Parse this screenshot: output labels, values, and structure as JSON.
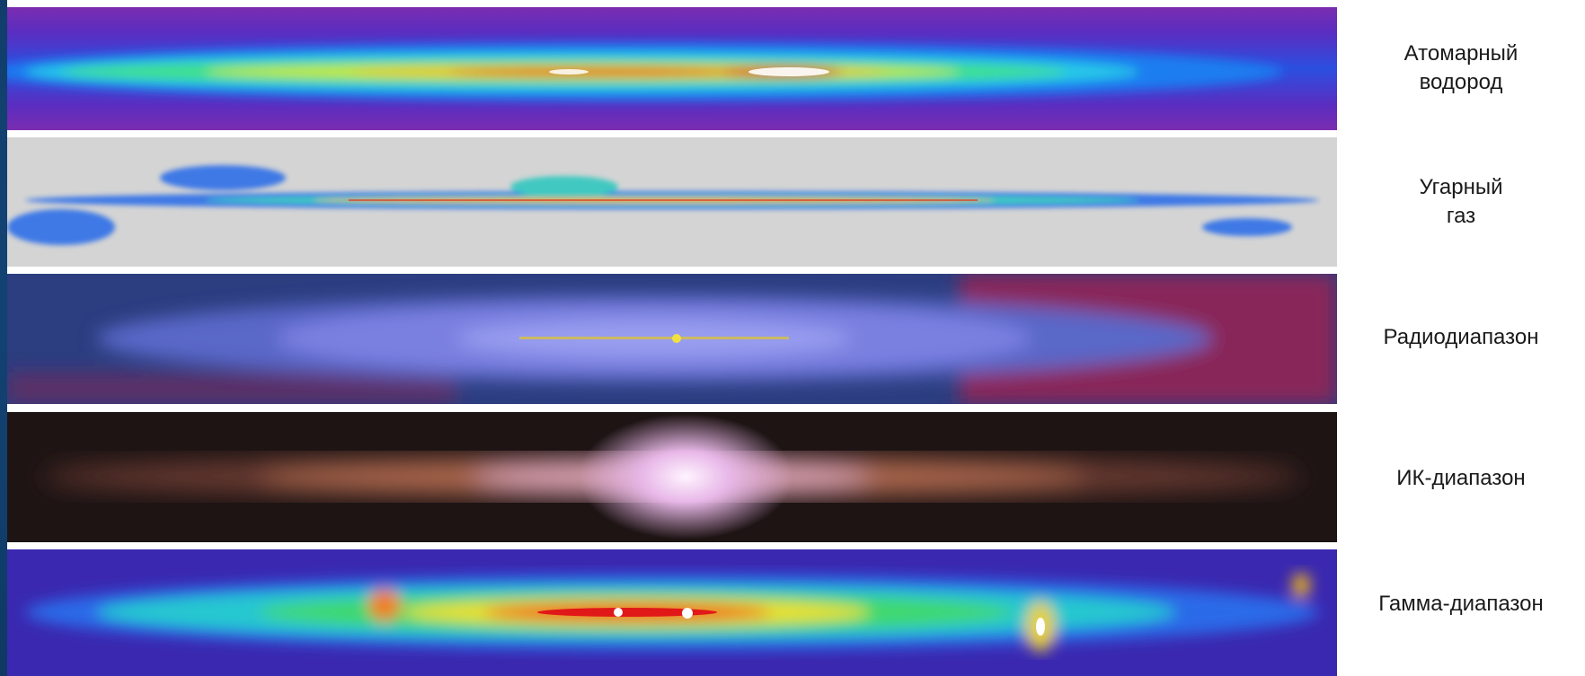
{
  "bands": [
    {
      "id": "hi",
      "label_lines": [
        "Атомарный",
        "водород"
      ]
    },
    {
      "id": "co",
      "label_lines": [
        "Угарный",
        "газ"
      ]
    },
    {
      "id": "radio",
      "label_lines": [
        "Радиодиапазон"
      ]
    },
    {
      "id": "ir",
      "label_lines": [
        "ИК-диапазон"
      ]
    },
    {
      "id": "gamma",
      "label_lines": [
        "Гамма-диапазон"
      ]
    }
  ]
}
